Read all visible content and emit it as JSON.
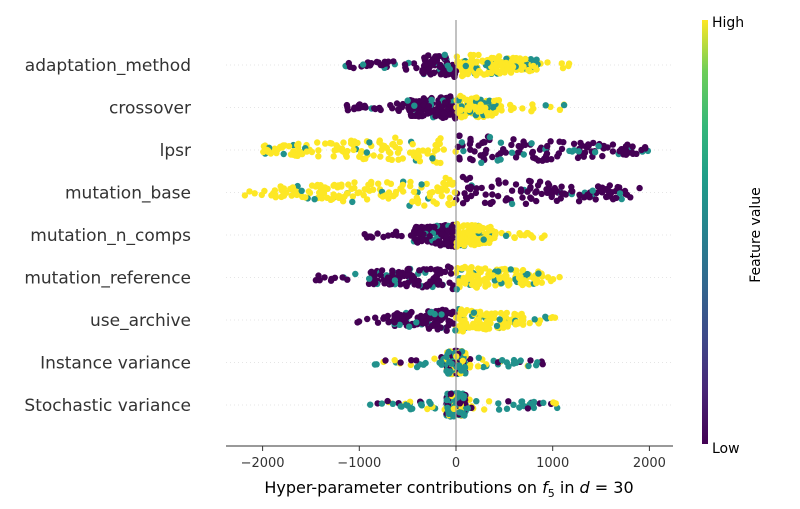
{
  "chart_data": {
    "type": "beeswarm",
    "xlabel_parts": {
      "prefix": "Hyper-parameter contributions on ",
      "f": "f",
      "sub": "5",
      "mid": " in ",
      "d": "d",
      "eq": " = 30"
    },
    "xlim": [
      -2400,
      2250
    ],
    "xticks": [
      -2000,
      -1000,
      0,
      1000,
      2000
    ],
    "xtick_labels": [
      "−2000",
      "−1000",
      "0",
      "1000",
      "2000"
    ],
    "features": [
      {
        "name": "adaptation_method",
        "min": -1150,
        "max": 1200,
        "core_left": -350,
        "core_right": 850,
        "low_side": "left"
      },
      {
        "name": "crossover",
        "min": -1150,
        "max": 1150,
        "core_left": -500,
        "core_right": 450,
        "low_side": "left"
      },
      {
        "name": "lpsr",
        "min": -2050,
        "max": 2050,
        "core_left": -2000,
        "core_right": 2000,
        "low_side": "right"
      },
      {
        "name": "mutation_base",
        "min": -2200,
        "max": 1900,
        "core_left": -2000,
        "core_right": 1800,
        "low_side": "right"
      },
      {
        "name": "mutation_n_comps",
        "min": -950,
        "max": 950,
        "core_left": -450,
        "core_right": 400,
        "low_side": "left"
      },
      {
        "name": "mutation_reference",
        "min": -1450,
        "max": 1100,
        "core_left": -900,
        "core_right": 900,
        "low_side": "left"
      },
      {
        "name": "use_archive",
        "min": -1050,
        "max": 1050,
        "core_left": -650,
        "core_right": 700,
        "low_side": "left"
      },
      {
        "name": "Instance variance",
        "min": -850,
        "max": 900,
        "core_left": -100,
        "core_right": 100,
        "low_side": "mixed"
      },
      {
        "name": "Stochastic variance",
        "min": -900,
        "max": 1050,
        "core_left": -100,
        "core_right": 100,
        "low_side": "mixed"
      }
    ],
    "colorbar": {
      "title": "Feature value",
      "high_label": "High",
      "low_label": "Low",
      "colormap": "viridis"
    },
    "colors": {
      "low": "#440154",
      "mid": "#21918c",
      "high": "#fde725",
      "zero_line": "#999999"
    }
  }
}
